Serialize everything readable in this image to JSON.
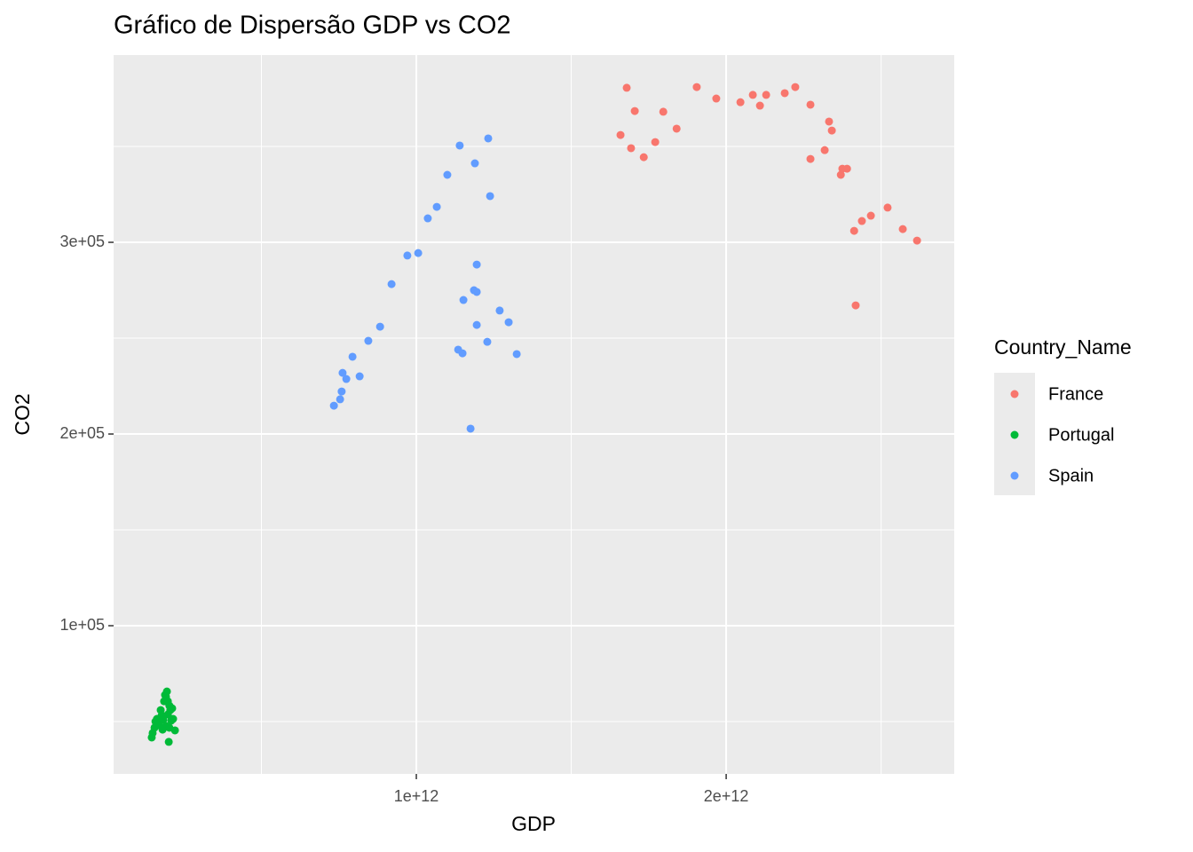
{
  "chart_data": {
    "type": "scatter",
    "title": "Gráfico de Dispersão GDP vs CO2",
    "x_label": "GDP",
    "y_label": "CO2",
    "xlim": [
      23000000000,
      2736000000000
    ],
    "ylim": [
      22700,
      397700
    ],
    "xticks": [
      {
        "value": 1000000000000,
        "label": "1e+12"
      },
      {
        "value": 2000000000000,
        "label": "2e+12"
      }
    ],
    "yticks": [
      {
        "value": 100000,
        "label": "1e+05"
      },
      {
        "value": 200000,
        "label": "2e+05"
      },
      {
        "value": 300000,
        "label": "3e+05"
      }
    ],
    "x_minor_breaks": [
      500000000000,
      1500000000000,
      2500000000000
    ],
    "y_minor_breaks": [
      50000,
      150000,
      250000,
      350000
    ],
    "grid": true,
    "legend_title": "Country_Name",
    "legend_position": "right",
    "series": [
      {
        "name": "France",
        "color": "#f8766d",
        "x": [
          1659000000000.0,
          1679000000000.0,
          1693000000000.0,
          1705000000000.0,
          1734000000000.0,
          1771000000000.0,
          1797000000000.0,
          1840000000000.0,
          1905000000000.0,
          1968000000000.0,
          2046000000000.0,
          2086000000000.0,
          2109000000000.0,
          2129000000000.0,
          2189000000000.0,
          2223000000000.0,
          2272000000000.0,
          2272000000000.0,
          2318000000000.0,
          2332000000000.0,
          2341000000000.0,
          2370000000000.0,
          2375000000000.0,
          2390000000000.0,
          2413000000000.0,
          2418000000000.0,
          2438000000000.0,
          2467000000000.0,
          2521000000000.0,
          2570000000000.0,
          2616000000000.0
        ],
        "y": [
          356000,
          380600,
          349100,
          368500,
          344400,
          352300,
          368100,
          359300,
          381000,
          375000,
          373100,
          376900,
          371300,
          376900,
          377800,
          381000,
          371800,
          343500,
          348100,
          363000,
          358300,
          335200,
          338400,
          338400,
          306000,
          267100,
          311100,
          313900,
          318100,
          306900,
          300900
        ]
      },
      {
        "name": "Portugal",
        "color": "#00ba38",
        "x": [
          146000000000.0,
          149000000000.0,
          155000000000.0,
          158000000000.0,
          163000000000.0,
          169000000000.0,
          175000000000.0,
          181000000000.0,
          183000000000.0,
          186000000000.0,
          189000000000.0,
          192000000000.0,
          195000000000.0,
          198000000000.0,
          198000000000.0,
          201000000000.0,
          203000000000.0,
          203000000000.0,
          206000000000.0,
          209000000000.0,
          212000000000.0,
          215000000000.0,
          221000000000.0,
          178000000000.0,
          192000000000.0
        ],
        "y": [
          41700,
          44000,
          46800,
          50000,
          51400,
          48100,
          56000,
          45800,
          50900,
          60600,
          63900,
          47700,
          65700,
          60600,
          53700,
          39400,
          58300,
          46800,
          56000,
          50500,
          56900,
          51400,
          45400,
          53200,
          63000
        ]
      },
      {
        "name": "Spain",
        "color": "#619cff",
        "x": [
          734000000000.0,
          754000000000.0,
          759000000000.0,
          762000000000.0,
          774000000000.0,
          794000000000.0,
          817000000000.0,
          845000000000.0,
          883000000000.0,
          920000000000.0,
          971000000000.0,
          1006000000000.0,
          1037000000000.0,
          1066000000000.0,
          1100000000000.0,
          1140000000000.0,
          1135000000000.0,
          1149000000000.0,
          1152000000000.0,
          1175000000000.0,
          1186000000000.0,
          1189000000000.0,
          1195000000000.0,
          1195000000000.0,
          1195000000000.0,
          1232000000000.0,
          1229000000000.0,
          1238000000000.0,
          1269000000000.0,
          1298000000000.0,
          1324000000000.0
        ],
        "y": [
          214800,
          218100,
          222200,
          231900,
          228700,
          240300,
          230100,
          248600,
          256000,
          278200,
          293100,
          294400,
          312500,
          318500,
          335200,
          350500,
          244000,
          242100,
          269900,
          202800,
          275000,
          341200,
          274100,
          288400,
          256900,
          354200,
          248100,
          324100,
          264400,
          258300,
          241700
        ]
      }
    ]
  }
}
